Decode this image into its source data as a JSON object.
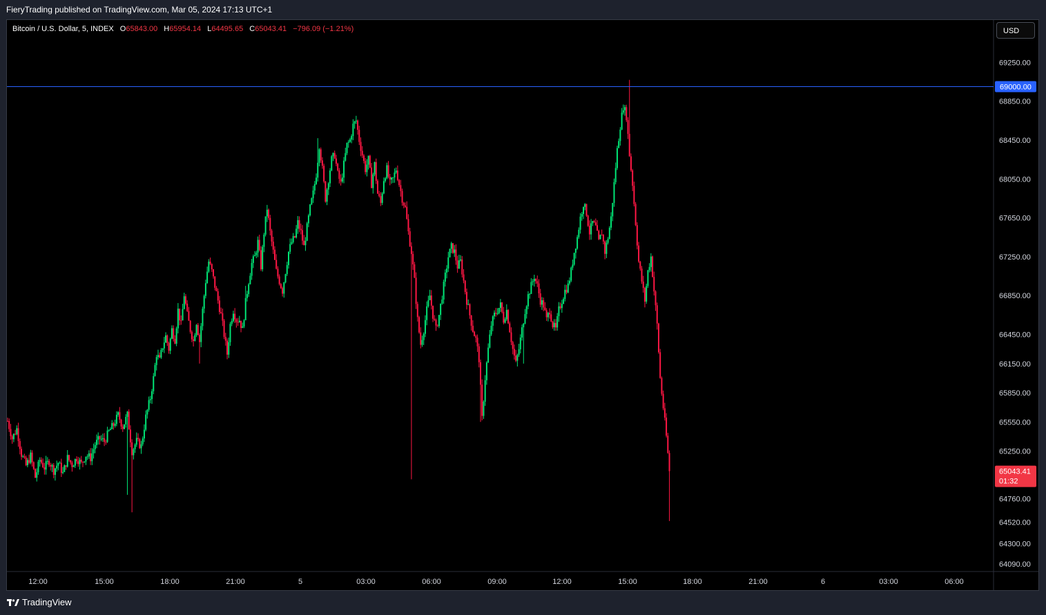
{
  "header": {
    "publisher": "FieryTrading published on TradingView.com, Mar 05, 2024 17:13 UTC+1"
  },
  "legend": {
    "symbol": "Bitcoin / U.S. Dollar, 5, INDEX",
    "o_label": "O",
    "o_value": "65843.00",
    "h_label": "H",
    "h_value": "65954.14",
    "l_label": "L",
    "l_value": "64495.65",
    "c_label": "C",
    "c_value": "65043.41",
    "change": "−796.09 (−1.21%)"
  },
  "currency_button": "USD",
  "footer": {
    "brand": "TradingView"
  },
  "colors": {
    "background": "#000000",
    "up": "#00e676",
    "down": "#ff1744",
    "hline": "#2962ff",
    "last_price": "#f23645"
  },
  "chart_data": {
    "type": "candlestick",
    "interval": "5",
    "ylim": [
      64000,
      69550
    ],
    "y_ticks": [
      "64090.00",
      "64300.00",
      "64520.00",
      "64760.00",
      "65250.00",
      "65550.00",
      "65850.00",
      "66150.00",
      "66450.00",
      "66850.00",
      "67250.00",
      "67650.00",
      "68050.00",
      "68450.00",
      "68850.00",
      "69250.00"
    ],
    "x_ticks": [
      "12:00",
      "15:00",
      "18:00",
      "21:00",
      "5",
      "03:00",
      "06:00",
      "09:00",
      "12:00",
      "15:00",
      "18:00",
      "21:00",
      "6",
      "03:00",
      "06:00"
    ],
    "horizontal_line": {
      "value": 69000,
      "label": "69000.00"
    },
    "last_price": {
      "value": 65043.41,
      "label": "65043.41",
      "countdown": "01:32"
    },
    "path": [
      [
        0,
        65560
      ],
      [
        3,
        65380
      ],
      [
        6,
        65480
      ],
      [
        9,
        65220
      ],
      [
        12,
        65100
      ],
      [
        15,
        65200
      ],
      [
        18,
        64980
      ],
      [
        21,
        65160
      ],
      [
        24,
        65080
      ],
      [
        27,
        65150
      ],
      [
        30,
        65050
      ],
      [
        33,
        65130
      ],
      [
        36,
        65020
      ],
      [
        39,
        65180
      ],
      [
        42,
        65110
      ],
      [
        45,
        65180
      ],
      [
        48,
        65120
      ],
      [
        51,
        65210
      ],
      [
        54,
        65180
      ],
      [
        57,
        65320
      ],
      [
        60,
        65380
      ],
      [
        63,
        65350
      ],
      [
        66,
        65450
      ],
      [
        69,
        65520
      ],
      [
        72,
        65620
      ],
      [
        75,
        65500
      ],
      [
        78,
        65620
      ],
      [
        81,
        65250
      ],
      [
        84,
        65350
      ],
      [
        87,
        65300
      ],
      [
        90,
        65600
      ],
      [
        93,
        65800
      ],
      [
        95,
        66000
      ],
      [
        97,
        66250
      ],
      [
        99,
        66180
      ],
      [
        101,
        66330
      ],
      [
        103,
        66430
      ],
      [
        105,
        66300
      ],
      [
        107,
        66500
      ],
      [
        109,
        66400
      ],
      [
        111,
        66700
      ],
      [
        113,
        66550
      ],
      [
        115,
        66860
      ],
      [
        117,
        66650
      ],
      [
        119,
        66500
      ],
      [
        121,
        66380
      ],
      [
        123,
        66580
      ],
      [
        125,
        66380
      ],
      [
        127,
        66700
      ],
      [
        129,
        67000
      ],
      [
        131,
        67200
      ],
      [
        133,
        67100
      ],
      [
        135,
        66950
      ],
      [
        137,
        66800
      ],
      [
        139,
        66650
      ],
      [
        141,
        66450
      ],
      [
        143,
        66250
      ],
      [
        145,
        66550
      ],
      [
        147,
        66700
      ],
      [
        149,
        66600
      ],
      [
        151,
        66600
      ],
      [
        153,
        66500
      ],
      [
        155,
        66780
      ],
      [
        157,
        67000
      ],
      [
        159,
        67180
      ],
      [
        161,
        67250
      ],
      [
        163,
        67400
      ],
      [
        165,
        67150
      ],
      [
        167,
        67500
      ],
      [
        169,
        67750
      ],
      [
        171,
        67500
      ],
      [
        173,
        67300
      ],
      [
        175,
        67100
      ],
      [
        177,
        67000
      ],
      [
        179,
        66900
      ],
      [
        181,
        67100
      ],
      [
        183,
        67300
      ],
      [
        185,
        67400
      ],
      [
        187,
        67450
      ],
      [
        189,
        67600
      ],
      [
        191,
        67500
      ],
      [
        193,
        67350
      ],
      [
        195,
        67550
      ],
      [
        197,
        67750
      ],
      [
        199,
        67900
      ],
      [
        201,
        68100
      ],
      [
        203,
        68400
      ],
      [
        205,
        68150
      ],
      [
        207,
        67850
      ],
      [
        209,
        68050
      ],
      [
        211,
        68250
      ],
      [
        213,
        68300
      ],
      [
        215,
        68100
      ],
      [
        217,
        68000
      ],
      [
        219,
        68200
      ],
      [
        221,
        68400
      ],
      [
        223,
        68450
      ],
      [
        225,
        68600
      ],
      [
        227,
        68650
      ],
      [
        229,
        68450
      ],
      [
        231,
        68300
      ],
      [
        233,
        68150
      ],
      [
        235,
        68250
      ],
      [
        237,
        68000
      ],
      [
        239,
        68200
      ],
      [
        241,
        67900
      ],
      [
        243,
        67800
      ],
      [
        245,
        68050
      ],
      [
        247,
        68150
      ],
      [
        249,
        68000
      ],
      [
        251,
        68050
      ],
      [
        253,
        68150
      ],
      [
        255,
        68000
      ],
      [
        257,
        67850
      ],
      [
        259,
        67750
      ],
      [
        261,
        67500
      ],
      [
        263,
        67300
      ],
      [
        265,
        67000
      ],
      [
        267,
        66600
      ],
      [
        269,
        66350
      ],
      [
        271,
        66500
      ],
      [
        273,
        66700
      ],
      [
        275,
        66850
      ],
      [
        277,
        66650
      ],
      [
        279,
        66500
      ],
      [
        281,
        66650
      ],
      [
        283,
        66850
      ],
      [
        285,
        67050
      ],
      [
        287,
        67250
      ],
      [
        289,
        67350
      ],
      [
        291,
        67300
      ],
      [
        293,
        67150
      ],
      [
        295,
        67200
      ],
      [
        297,
        67000
      ],
      [
        299,
        66800
      ],
      [
        301,
        66650
      ],
      [
        303,
        66500
      ],
      [
        305,
        66400
      ],
      [
        307,
        66200
      ],
      [
        309,
        65580
      ],
      [
        311,
        66000
      ],
      [
        313,
        66300
      ],
      [
        315,
        66550
      ],
      [
        317,
        66650
      ],
      [
        319,
        66700
      ],
      [
        321,
        66750
      ],
      [
        323,
        66600
      ],
      [
        325,
        66700
      ],
      [
        327,
        66500
      ],
      [
        329,
        66300
      ],
      [
        331,
        66150
      ],
      [
        333,
        66300
      ],
      [
        335,
        66500
      ],
      [
        337,
        66700
      ],
      [
        339,
        66850
      ],
      [
        341,
        66950
      ],
      [
        343,
        67050
      ],
      [
        345,
        66950
      ],
      [
        347,
        66800
      ],
      [
        349,
        66750
      ],
      [
        351,
        66600
      ],
      [
        353,
        66700
      ],
      [
        355,
        66550
      ],
      [
        357,
        66500
      ],
      [
        359,
        66700
      ],
      [
        361,
        66800
      ],
      [
        363,
        66900
      ],
      [
        365,
        66950
      ],
      [
        367,
        67100
      ],
      [
        369,
        67300
      ],
      [
        371,
        67450
      ],
      [
        373,
        67650
      ],
      [
        375,
        67800
      ],
      [
        377,
        67700
      ],
      [
        379,
        67500
      ],
      [
        381,
        67600
      ],
      [
        383,
        67550
      ],
      [
        385,
        67400
      ],
      [
        387,
        67500
      ],
      [
        389,
        67300
      ],
      [
        391,
        67450
      ],
      [
        393,
        67650
      ],
      [
        395,
        68000
      ],
      [
        397,
        68350
      ],
      [
        399,
        68600
      ],
      [
        401,
        68800
      ],
      [
        403,
        68700
      ],
      [
        405,
        68300
      ],
      [
        407,
        68000
      ],
      [
        409,
        67600
      ],
      [
        411,
        67200
      ],
      [
        413,
        67000
      ],
      [
        415,
        66800
      ],
      [
        417,
        67100
      ],
      [
        419,
        67250
      ],
      [
        421,
        66900
      ],
      [
        423,
        66550
      ],
      [
        425,
        66000
      ],
      [
        427,
        65700
      ],
      [
        429,
        65400
      ],
      [
        431,
        65043
      ]
    ],
    "extremes": [
      [
        78,
        64800
      ],
      [
        81,
        64620
      ],
      [
        125,
        66150
      ],
      [
        155,
        66950
      ],
      [
        202,
        68470
      ],
      [
        217,
        68000
      ],
      [
        227,
        68700
      ],
      [
        263,
        64960
      ],
      [
        308,
        65550
      ],
      [
        336,
        66150
      ],
      [
        405,
        69070
      ],
      [
        423,
        66500
      ],
      [
        431,
        64530
      ]
    ]
  }
}
